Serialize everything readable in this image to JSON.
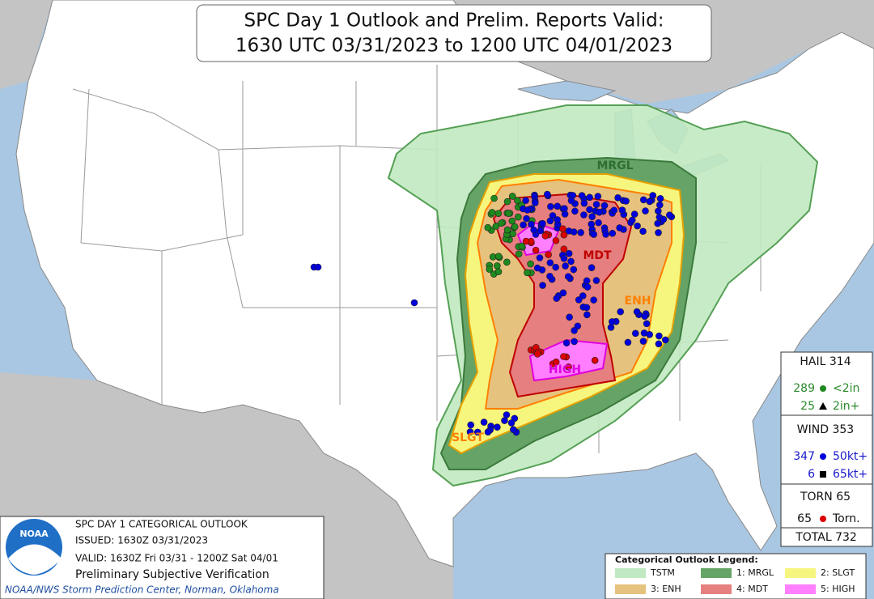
{
  "header": {
    "title": [
      "SPC Day 1 Outlook and Prelim. Reports Valid:",
      "1630 UTC 03/31/2023 to 1200 UTC 04/01/2023"
    ]
  },
  "map_labels": [
    "MRGL",
    "ENH",
    "MDT",
    "HIGH",
    "SLGT"
  ],
  "reports": {
    "hail": {
      "heading": "HAIL 314",
      "rows": [
        {
          "count": 289,
          "label": "<2in"
        },
        {
          "count": 25,
          "label": "2in+"
        }
      ]
    },
    "wind": {
      "heading": "WIND 353",
      "rows": [
        {
          "count": 347,
          "label": "50kt+"
        },
        {
          "count": 6,
          "label": "65kt+"
        }
      ]
    },
    "torn": {
      "heading": "TORN 65",
      "rows": [
        {
          "count": 65,
          "label": "Torn."
        }
      ]
    },
    "total": "TOTAL 732"
  },
  "info": {
    "logo": "NOAA",
    "lines": [
      "SPC DAY 1 CATEGORICAL OUTLOOK",
      "ISSUED: 1630Z 03/31/2023",
      "VALID: 1630Z Fri 03/31 - 1200Z Sat 04/01",
      "Preliminary Subjective Verification",
      "NOAA/NWS Storm Prediction Center, Norman, Oklahoma"
    ]
  },
  "legend": {
    "title": "Categorical Outlook Legend:",
    "items": [
      "TSTM",
      "1: MRGL",
      "2: SLGT",
      "3: ENH",
      "4: MDT",
      "5: HIGH"
    ]
  }
}
